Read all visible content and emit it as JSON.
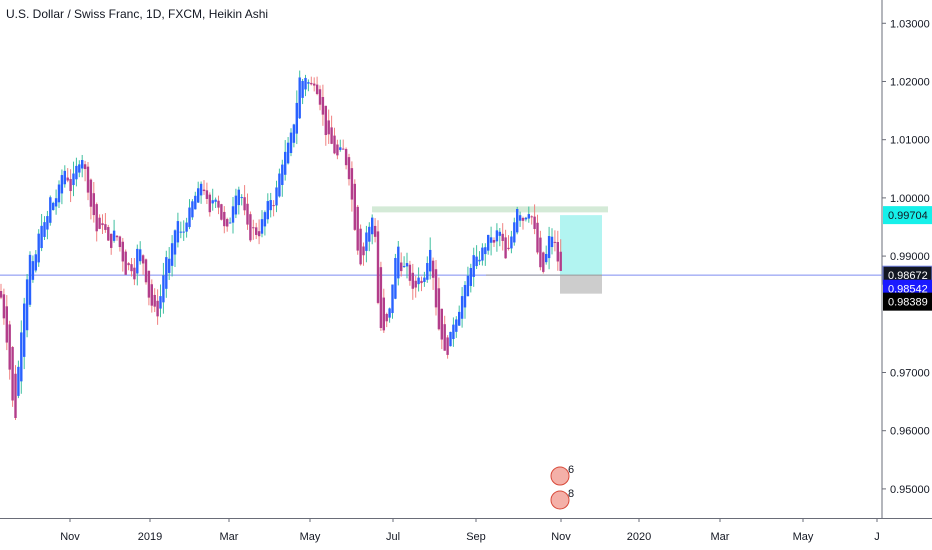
{
  "header": {
    "title": "U.S. Dollar / Swiss Franc, 1D, FXCM, Heikin Ashi"
  },
  "colors": {
    "up": "#2962ff",
    "down": "#b33d8a",
    "wick_up": "#3fbfa0",
    "wick_down": "#f08080",
    "hline": "#7d8cf0",
    "zone_top": "#cfe8d3",
    "target": "#a5f2ef",
    "stop": "#c8c8c8",
    "badge_top": "#16f0ea",
    "badge_mid": "#131722",
    "badge_blue": "#1a1aff",
    "badge_low": "#000000"
  },
  "chart_data": {
    "type": "candlestick",
    "heikin_ashi": true,
    "ylim": [
      0.945,
      1.034
    ],
    "y_ticks": [
      "1.03000",
      "1.02000",
      "1.01000",
      "1.00000",
      "0.99000",
      "0.97000",
      "0.96000",
      "0.95000"
    ],
    "x_ticks": [
      "Nov",
      "2019",
      "Mar",
      "May",
      "Jul",
      "Sep",
      "Nov",
      "2020",
      "Mar",
      "May",
      "J"
    ],
    "price_labels": [
      {
        "label": "0.99704",
        "value": 0.99704,
        "style": "cyan"
      },
      {
        "label": "0.98672",
        "value": 0.98672,
        "style": "blue-outline"
      },
      {
        "label": "0.98542",
        "value": 0.98542,
        "style": "blue"
      },
      {
        "label": "0.98389",
        "value": 0.98389,
        "style": "black"
      }
    ],
    "horizontal_line": 0.98672,
    "resistance_zone": [
      0.9976,
      0.9982
    ],
    "position": {
      "entry": 0.98672,
      "target": 0.99704,
      "stop": 0.98389
    },
    "event_markers": [
      "6",
      "8"
    ],
    "swing_path": [
      [
        0,
        0.984
      ],
      [
        4,
        0.9795
      ],
      [
        8,
        0.974
      ],
      [
        12,
        0.966
      ],
      [
        15,
        0.961
      ],
      [
        18,
        0.97
      ],
      [
        22,
        0.979
      ],
      [
        26,
        0.985
      ],
      [
        30,
        0.99
      ],
      [
        34,
        0.988
      ],
      [
        38,
        0.993
      ],
      [
        42,
        0.996
      ],
      [
        46,
        0.995
      ],
      [
        50,
        1.0
      ],
      [
        54,
        0.999
      ],
      [
        58,
        1.001
      ],
      [
        62,
        1.004
      ],
      [
        66,
        1.005
      ],
      [
        70,
        1.001
      ],
      [
        74,
        1.004
      ],
      [
        78,
        1.006
      ],
      [
        82,
        1.007
      ],
      [
        86,
        1.004
      ],
      [
        90,
        0.999
      ],
      [
        94,
        0.997
      ],
      [
        98,
        0.993
      ],
      [
        102,
        0.996
      ],
      [
        106,
        0.994
      ],
      [
        110,
        0.991
      ],
      [
        114,
        0.994
      ],
      [
        118,
        0.993
      ],
      [
        122,
        0.99
      ],
      [
        126,
        0.987
      ],
      [
        130,
        0.989
      ],
      [
        134,
        0.986
      ],
      [
        138,
        0.992
      ],
      [
        142,
        0.99
      ],
      [
        146,
        0.986
      ],
      [
        150,
        0.982
      ],
      [
        154,
        0.981
      ],
      [
        158,
        0.98
      ],
      [
        162,
        0.985
      ],
      [
        166,
        0.99
      ],
      [
        170,
        0.989
      ],
      [
        174,
        0.994
      ],
      [
        178,
        0.996
      ],
      [
        182,
        0.993
      ],
      [
        186,
        0.996
      ],
      [
        190,
        0.998
      ],
      [
        194,
        1.0
      ],
      [
        198,
        1.001
      ],
      [
        202,
        1.003
      ],
      [
        206,
        1.0
      ],
      [
        210,
        0.997
      ],
      [
        214,
        1.001
      ],
      [
        218,
        0.999
      ],
      [
        222,
        0.996
      ],
      [
        226,
        0.994
      ],
      [
        230,
        0.996
      ],
      [
        234,
        1.0
      ],
      [
        238,
        1.002
      ],
      [
        242,
        1.0
      ],
      [
        246,
        0.996
      ],
      [
        250,
        0.993
      ],
      [
        254,
        0.995
      ],
      [
        258,
        0.993
      ],
      [
        262,
        0.996
      ],
      [
        266,
        0.998
      ],
      [
        270,
        1.0
      ],
      [
        274,
        0.999
      ],
      [
        278,
        1.003
      ],
      [
        282,
        1.006
      ],
      [
        286,
        1.008
      ],
      [
        290,
        1.01
      ],
      [
        294,
        1.013
      ],
      [
        298,
        1.018
      ],
      [
        300,
        1.021
      ],
      [
        303,
        1.02
      ],
      [
        306,
        1.021
      ],
      [
        310,
        1.019
      ],
      [
        314,
        1.02
      ],
      [
        318,
        1.018
      ],
      [
        322,
        1.015
      ],
      [
        326,
        1.011
      ],
      [
        330,
        1.01
      ],
      [
        334,
        1.008
      ],
      [
        338,
        1.007
      ],
      [
        342,
        1.009
      ],
      [
        346,
        1.006
      ],
      [
        350,
        1.003
      ],
      [
        354,
        0.996
      ],
      [
        358,
        0.991
      ],
      [
        362,
        0.988
      ],
      [
        366,
        0.994
      ],
      [
        370,
        0.995
      ],
      [
        374,
        0.998
      ],
      [
        378,
        0.982
      ],
      [
        382,
        0.976
      ],
      [
        386,
        0.978
      ],
      [
        390,
        0.981
      ],
      [
        394,
        0.988
      ],
      [
        398,
        0.992
      ],
      [
        402,
        0.987
      ],
      [
        406,
        0.989
      ],
      [
        410,
        0.986
      ],
      [
        414,
        0.983
      ],
      [
        418,
        0.987
      ],
      [
        422,
        0.985
      ],
      [
        426,
        0.988
      ],
      [
        430,
        0.992
      ],
      [
        434,
        0.985
      ],
      [
        438,
        0.978
      ],
      [
        442,
        0.976
      ],
      [
        446,
        0.972
      ],
      [
        450,
        0.976
      ],
      [
        454,
        0.979
      ],
      [
        458,
        0.98
      ],
      [
        462,
        0.983
      ],
      [
        466,
        0.985
      ],
      [
        470,
        0.988
      ],
      [
        474,
        0.99
      ],
      [
        478,
        0.989
      ],
      [
        482,
        0.991
      ],
      [
        486,
        0.992
      ],
      [
        490,
        0.994
      ],
      [
        494,
        0.992
      ],
      [
        498,
        0.995
      ],
      [
        502,
        0.993
      ],
      [
        506,
        0.989
      ],
      [
        510,
        0.992
      ],
      [
        514,
        0.996
      ],
      [
        518,
        0.999
      ],
      [
        522,
        0.996
      ],
      [
        526,
        0.997
      ],
      [
        530,
        0.998
      ],
      [
        534,
        0.995
      ],
      [
        538,
        0.99
      ],
      [
        542,
        0.986
      ],
      [
        546,
        0.99
      ],
      [
        550,
        0.994
      ],
      [
        554,
        0.993
      ],
      [
        558,
        0.989
      ],
      [
        561,
        0.987
      ]
    ]
  }
}
